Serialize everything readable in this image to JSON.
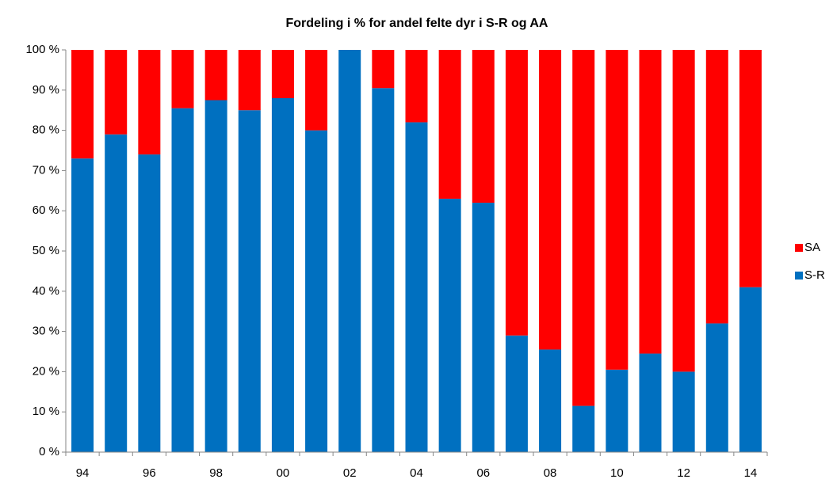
{
  "chart_data": {
    "type": "stacked_bar",
    "title": "Fordeling i % for andel felte dyr i S-R og AA",
    "categories": [
      "94",
      null,
      "96",
      null,
      "98",
      null,
      "00",
      null,
      "02",
      null,
      "04",
      null,
      "06",
      null,
      "08",
      null,
      "10",
      null,
      "12",
      null,
      "14"
    ],
    "series": [
      {
        "name": "S-R",
        "color": "#0070c0",
        "values": [
          73,
          79,
          74,
          85.5,
          87.5,
          85,
          88,
          80,
          100,
          90.5,
          82,
          63,
          62,
          29,
          25.5,
          11.5,
          20.5,
          24.5,
          20,
          32,
          41
        ]
      },
      {
        "name": "SA",
        "color": "#ff0000",
        "values": [
          27,
          21,
          26,
          14.5,
          12.5,
          15,
          12,
          20,
          0,
          9.5,
          18,
          37,
          38,
          71,
          74.5,
          88.5,
          79.5,
          75.5,
          80,
          68,
          59
        ]
      }
    ],
    "ylim": [
      0,
      100
    ],
    "yticks": [
      {
        "value": 0,
        "label": "0 %"
      },
      {
        "value": 10,
        "label": "10 %"
      },
      {
        "value": 20,
        "label": "20 %"
      },
      {
        "value": 30,
        "label": "30 %"
      },
      {
        "value": 40,
        "label": "40 %"
      },
      {
        "value": 50,
        "label": "50 %"
      },
      {
        "value": 60,
        "label": "60 %"
      },
      {
        "value": 70,
        "label": "70 %"
      },
      {
        "value": 80,
        "label": "80 %"
      },
      {
        "value": 90,
        "label": "90 %"
      },
      {
        "value": 100,
        "label": "100 %"
      }
    ],
    "grid": false,
    "legend": "right"
  }
}
